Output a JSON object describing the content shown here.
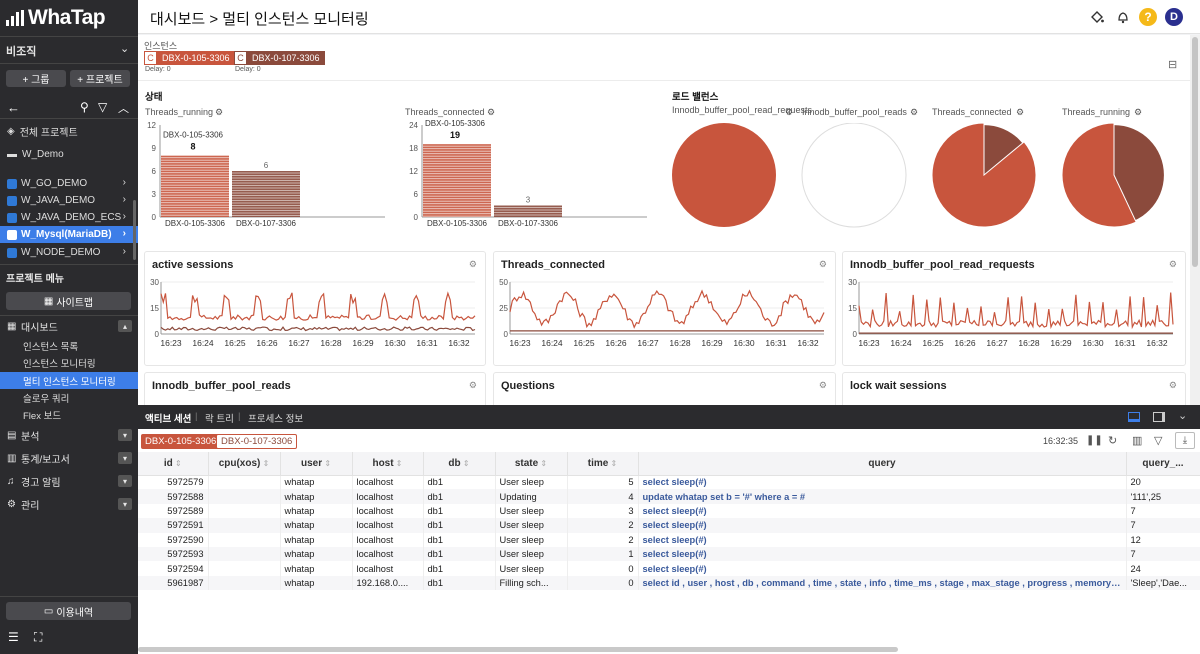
{
  "app": {
    "logo": "WhaTap"
  },
  "sidebar": {
    "org": "비조직",
    "btn_group": "+ 그룹",
    "btn_project": "+ 프로젝트",
    "projects": [
      {
        "label": "전체 프로젝트"
      },
      {
        "label": "W_Demo"
      },
      {
        "label": "W_GO_DEMO"
      },
      {
        "label": "W_JAVA_DEMO"
      },
      {
        "label": "W_JAVA_DEMO_ECS"
      },
      {
        "label": "W_Mysql(MariaDB)"
      },
      {
        "label": "W_NODE_DEMO"
      }
    ],
    "menu_title": "프로젝트 메뉴",
    "sitemap": "사이트맵",
    "menu": [
      {
        "label": "대시보드"
      },
      {
        "label": "분석"
      },
      {
        "label": "통계/보고서"
      },
      {
        "label": "경고 알림"
      },
      {
        "label": "관리"
      }
    ],
    "dashboard_sub": [
      "인스턴스 목록",
      "인스턴스 모니터링",
      "멀티 인스턴스 모니터링",
      "슬로우 쿼리",
      "Flex 보드"
    ],
    "usage": "이용내역"
  },
  "header": {
    "title": "대시보드 > 멀티 인스턴스 모니터링",
    "avatar": "D",
    "help": "?"
  },
  "instances": {
    "label": "인스턴스",
    "items": [
      {
        "badge": "C",
        "name": "DBX-0-105-3306",
        "delay": "Delay: 0",
        "color": "#c8553d"
      },
      {
        "badge": "C",
        "name": "DBX-0-107-3306",
        "delay": "Delay: 0",
        "color": "#8b4a3c"
      }
    ]
  },
  "status": {
    "title": "상태"
  },
  "load": {
    "title": "로드 밸런스",
    "pies": [
      {
        "title": "Innodb_buffer_pool_read_requests",
        "share_105": 1.0
      },
      {
        "title": "Innodb_buffer_pool_reads",
        "share_105": 0
      },
      {
        "title": "Threads_connected",
        "share_105": 0.86
      },
      {
        "title": "Threads_running",
        "share_105": 0.57
      }
    ]
  },
  "bar_charts": [
    {
      "title": "Threads_running",
      "yticks": [
        "12",
        "9",
        "6",
        "3",
        "0"
      ],
      "ymax": 12,
      "bars": [
        {
          "name": "DBX-0-105-3306",
          "value": 8
        },
        {
          "name": "DBX-0-107-3306",
          "value": 6
        }
      ]
    },
    {
      "title": "Threads_connected",
      "yticks": [
        "24",
        "18",
        "12",
        "6",
        "0"
      ],
      "ymax": 24,
      "bars": [
        {
          "name": "DBX-0-105-3306",
          "value": 19
        },
        {
          "name": "DBX-0-107-3306",
          "value": 3
        }
      ]
    }
  ],
  "line_charts": [
    {
      "title": "active sessions",
      "ymax": 30,
      "yticks": [
        "30",
        "15",
        "0"
      ],
      "xticks": [
        "16:23",
        "16:24",
        "16:25",
        "16:26",
        "16:27",
        "16:28",
        "16:29",
        "16:30",
        "16:31",
        "16:32"
      ]
    },
    {
      "title": "Threads_connected",
      "ymax": 50,
      "yticks": [
        "50",
        "25",
        "0"
      ],
      "xticks": [
        "16:23",
        "16:24",
        "16:25",
        "16:26",
        "16:27",
        "16:28",
        "16:29",
        "16:30",
        "16:31",
        "16:32"
      ]
    },
    {
      "title": "Innodb_buffer_pool_read_requests",
      "ymax": 30,
      "yticks": [
        "30",
        "15",
        "0"
      ],
      "xticks": [
        "16:23",
        "16:24",
        "16:25",
        "16:26",
        "16:27",
        "16:28",
        "16:29",
        "16:30",
        "16:31",
        "16:32"
      ]
    }
  ],
  "lower_cards": [
    "Innodb_buffer_pool_reads",
    "Questions",
    "lock wait sessions"
  ],
  "bottom": {
    "tabs": [
      "액티브 세션",
      "락 트리",
      "프로세스 정보"
    ],
    "chips": [
      "DBX-0-105-3306",
      "DBX-0-107-3306"
    ],
    "time": "16:32:35",
    "columns": [
      "id",
      "cpu(xos)",
      "user",
      "host",
      "db",
      "state",
      "time",
      "query",
      "query_..."
    ],
    "rows": [
      [
        "5972579",
        "",
        "whatap",
        "localhost",
        "db1",
        "User sleep",
        "5",
        "select sleep(#)",
        "20"
      ],
      [
        "5972588",
        "",
        "whatap",
        "localhost",
        "db1",
        "Updating",
        "4",
        "update whatap set b = '#' where a = #",
        "'111',25"
      ],
      [
        "5972589",
        "",
        "whatap",
        "localhost",
        "db1",
        "User sleep",
        "3",
        "select sleep(#)",
        "7"
      ],
      [
        "5972591",
        "",
        "whatap",
        "localhost",
        "db1",
        "User sleep",
        "2",
        "select sleep(#)",
        "7"
      ],
      [
        "5972590",
        "",
        "whatap",
        "localhost",
        "db1",
        "User sleep",
        "2",
        "select sleep(#)",
        "12"
      ],
      [
        "5972593",
        "",
        "whatap",
        "localhost",
        "db1",
        "User sleep",
        "1",
        "select sleep(#)",
        "7"
      ],
      [
        "5972594",
        "",
        "whatap",
        "localhost",
        "db1",
        "User sleep",
        "0",
        "select sleep(#)",
        "24"
      ],
      [
        "5961987",
        "",
        "whatap",
        "192.168.0....",
        "db1",
        "Filling sch...",
        "0",
        "select id , user , host , db , command , time , state , info , time_ms , stage , max_stage , progress , memory_used , max...",
        "'Sleep','Dae..."
      ]
    ]
  }
}
